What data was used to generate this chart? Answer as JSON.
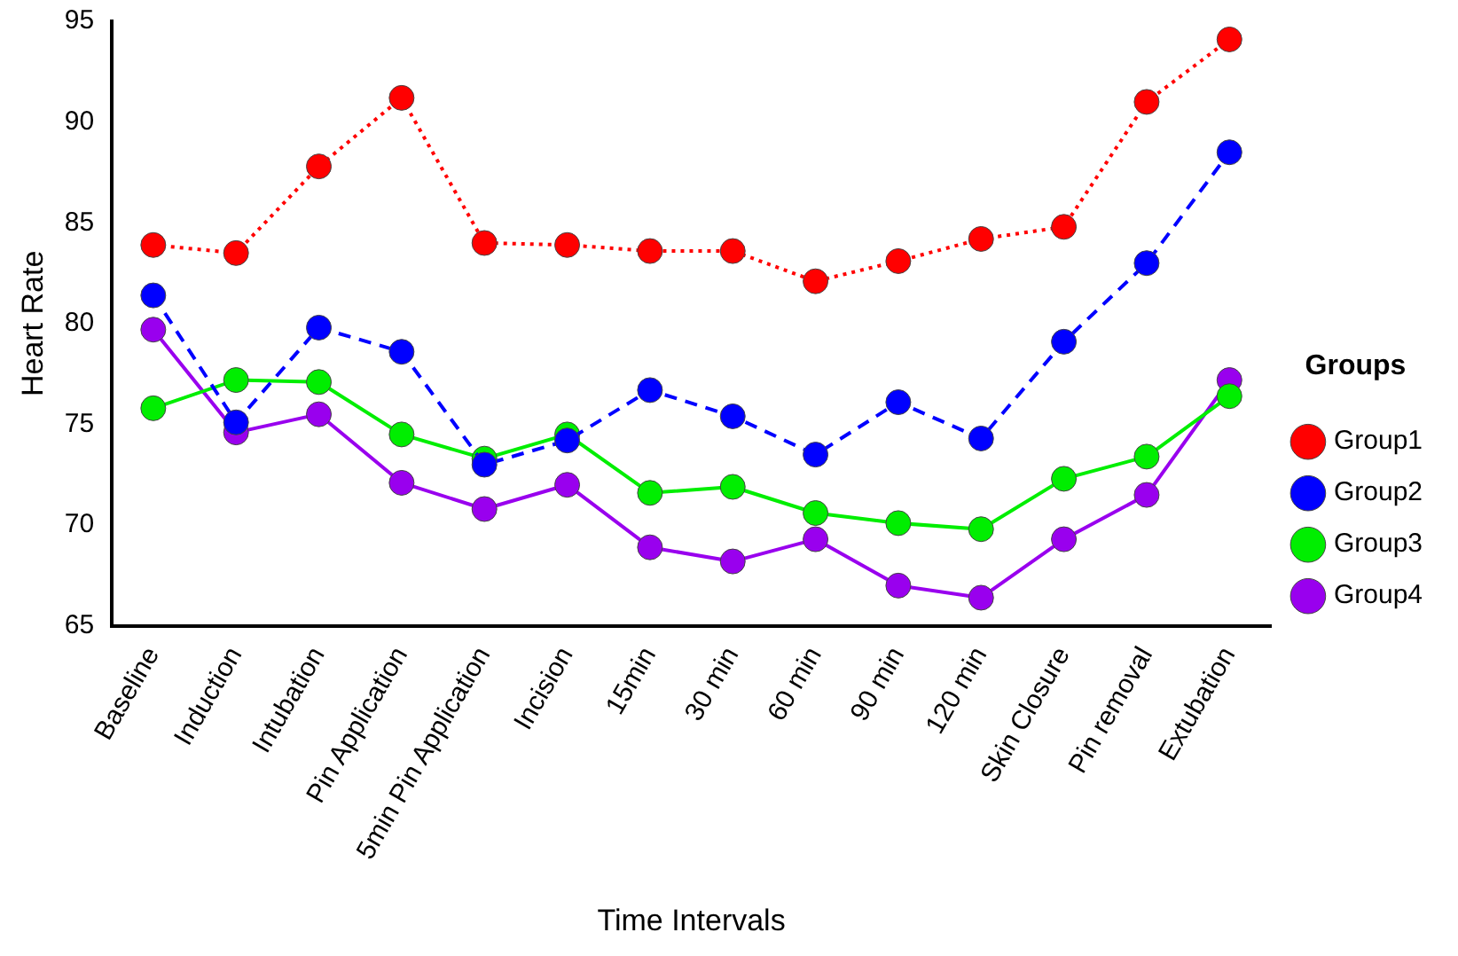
{
  "chart_data": {
    "type": "line",
    "xlabel": "Time Intervals",
    "ylabel": "Heart Rate",
    "legend_title": "Groups",
    "legend": "right",
    "grid": false,
    "marker": "circle",
    "categories": [
      "Baseline",
      "Induction",
      "Intubation",
      "Pin Application",
      "5min Pin Application",
      "Incision",
      "15min",
      "30 min",
      "60 min",
      "90 min",
      "120 min",
      "Skin Closure",
      "Pin removal",
      "Extubation"
    ],
    "ylim": [
      65,
      95
    ],
    "yticks": [
      65,
      70,
      75,
      80,
      85,
      90,
      95
    ],
    "series": [
      {
        "name": "Group1",
        "color": "#ff0000",
        "line_style": "dotted",
        "values": [
          83.9,
          83.5,
          87.8,
          91.2,
          84.0,
          83.9,
          83.6,
          83.6,
          82.1,
          83.1,
          84.2,
          84.8,
          91.0,
          94.1
        ]
      },
      {
        "name": "Group2",
        "color": "#0000ff",
        "line_style": "dashed",
        "values": [
          81.4,
          75.1,
          79.8,
          78.6,
          73.0,
          74.2,
          76.7,
          75.4,
          73.5,
          76.1,
          74.3,
          79.1,
          83.0,
          88.5
        ]
      },
      {
        "name": "Group3",
        "color": "#00ee00",
        "line_style": "solid",
        "values": [
          75.8,
          77.2,
          77.1,
          74.5,
          73.3,
          74.5,
          71.6,
          71.9,
          70.6,
          70.1,
          69.8,
          72.3,
          73.4,
          76.4
        ]
      },
      {
        "name": "Group4",
        "color": "#9900ee",
        "line_style": "solid",
        "values": [
          79.7,
          74.6,
          75.5,
          72.1,
          70.8,
          72.0,
          68.9,
          68.2,
          69.3,
          67.0,
          66.4,
          69.3,
          71.5,
          77.2
        ]
      }
    ]
  }
}
